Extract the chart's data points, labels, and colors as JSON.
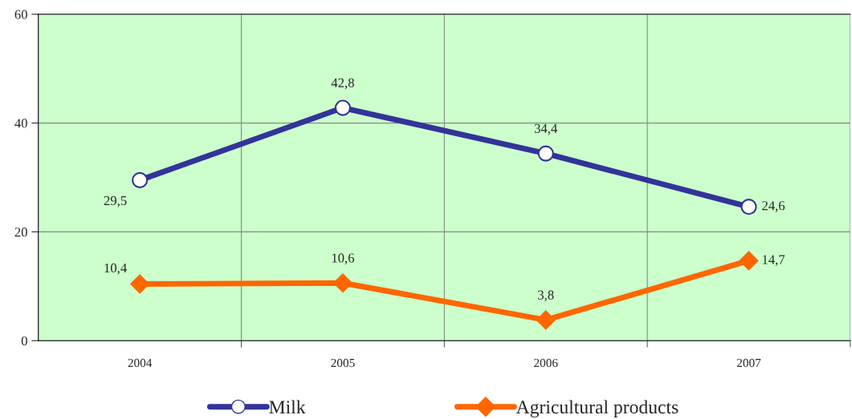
{
  "chart_data": {
    "type": "line",
    "categories": [
      "2004",
      "2005",
      "2006",
      "2007"
    ],
    "series": [
      {
        "name": "Milk",
        "color": "#333399",
        "marker": "circle",
        "values": [
          29.5,
          42.8,
          34.4,
          24.6
        ],
        "value_labels": [
          "29,5",
          "42,8",
          "34,4",
          "24,6"
        ]
      },
      {
        "name": "Agricultural products",
        "color": "#ff6600",
        "marker": "diamond",
        "values": [
          10.4,
          10.6,
          3.8,
          14.7
        ],
        "value_labels": [
          "10,4",
          "10,6",
          "3,8",
          "14,7"
        ]
      }
    ],
    "ylim": [
      0,
      60
    ],
    "yticks": [
      0,
      20,
      40,
      60
    ],
    "grid": true,
    "legend": "bottom",
    "line_style": "solid"
  }
}
